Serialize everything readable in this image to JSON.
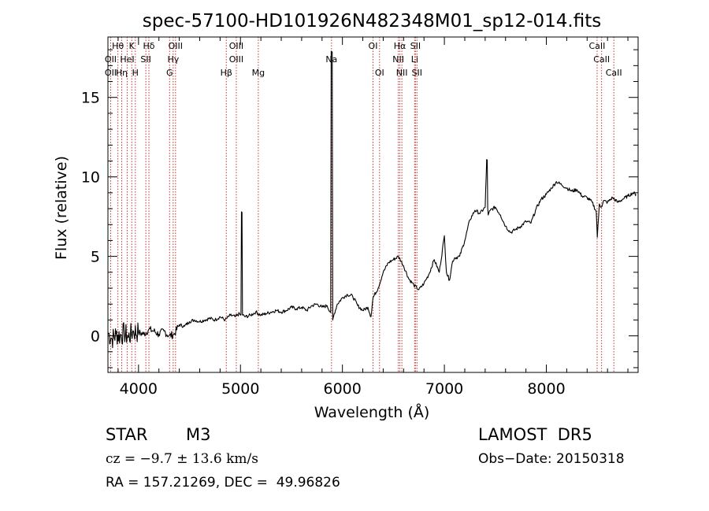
{
  "chart_data": {
    "type": "line",
    "title": "spec-57100-HD101926N482348M01_sp12-014.fits",
    "xlabel": "Wavelength (Å)",
    "ylabel": "Flux (relative)",
    "xlim": [
      3700,
      8900
    ],
    "ylim": [
      -2.3,
      18.8
    ],
    "x_ticks": [
      4000,
      5000,
      6000,
      7000,
      8000
    ],
    "y_ticks": [
      0,
      5,
      10,
      15
    ],
    "x_tick_labels": [
      "4000",
      "5000",
      "6000",
      "7000",
      "8000"
    ],
    "y_tick_labels": [
      "0",
      "5",
      "10",
      "15"
    ],
    "grid": false,
    "legend": "none",
    "series": [
      {
        "x": [
          3700,
          3740,
          3780,
          3820,
          3860,
          3900,
          3950,
          4000,
          4050,
          4100,
          4150,
          4200,
          4250,
          4300,
          4350,
          4400,
          4450,
          4500,
          4550,
          4600,
          4650,
          4700,
          4750,
          4800,
          4850,
          4900,
          4950,
          4990,
          5000,
          5010,
          5020,
          5050,
          5100,
          5150,
          5200,
          5250,
          5300,
          5350,
          5400,
          5450,
          5500,
          5550,
          5600,
          5650,
          5700,
          5750,
          5800,
          5850,
          5880,
          5895,
          5905,
          5920,
          5950,
          6000,
          6050,
          6100,
          6150,
          6200,
          6250,
          6280,
          6300,
          6350,
          6400,
          6450,
          6500,
          6550,
          6600,
          6650,
          6700,
          6750,
          6800,
          6850,
          6900,
          6950,
          7000,
          7020,
          7050,
          7080,
          7100,
          7150,
          7200,
          7250,
          7300,
          7350,
          7400,
          7415,
          7425,
          7430,
          7450,
          7500,
          7550,
          7600,
          7650,
          7700,
          7750,
          7800,
          7850,
          7900,
          7950,
          8000,
          8050,
          8100,
          8150,
          8200,
          8250,
          8300,
          8350,
          8400,
          8450,
          8490,
          8500,
          8520,
          8540,
          8560,
          8600,
          8650,
          8700,
          8750,
          8800,
          8850,
          8880
        ],
        "y": [
          0.2,
          -0.2,
          0.1,
          0.0,
          0.2,
          -0.1,
          0.3,
          0.2,
          0.1,
          0.4,
          0.3,
          0.1,
          0.3,
          0.0,
          0.1,
          0.7,
          0.6,
          0.9,
          1.0,
          0.9,
          1.0,
          1.1,
          1.0,
          1.2,
          1.0,
          1.3,
          1.2,
          1.4,
          1.3,
          7.8,
          1.3,
          1.2,
          1.3,
          1.5,
          1.3,
          1.4,
          1.5,
          1.6,
          1.5,
          1.6,
          1.8,
          1.7,
          1.8,
          1.6,
          1.9,
          2.0,
          1.8,
          1.9,
          1.5,
          17.8,
          1.0,
          1.4,
          2.0,
          2.4,
          2.6,
          2.5,
          1.9,
          1.6,
          1.8,
          1.2,
          2.4,
          3.0,
          4.0,
          4.6,
          4.8,
          5.0,
          4.4,
          3.6,
          3.2,
          2.9,
          3.3,
          3.9,
          4.8,
          4.0,
          6.3,
          4.0,
          3.5,
          4.7,
          4.9,
          5.0,
          6.0,
          7.3,
          7.9,
          7.7,
          8.1,
          11.1,
          8.0,
          7.6,
          7.9,
          8.1,
          7.6,
          6.9,
          6.5,
          6.7,
          6.9,
          7.2,
          7.1,
          8.0,
          8.6,
          8.9,
          9.3,
          9.7,
          9.5,
          9.3,
          9.1,
          9.2,
          8.8,
          8.7,
          8.4,
          7.8,
          6.2,
          8.3,
          8.1,
          8.5,
          8.4,
          8.7,
          8.4,
          8.6,
          8.8,
          9.0,
          8.9
        ]
      }
    ],
    "line_colors": {
      "markers": "#c8332d",
      "spectrum": "#000000"
    },
    "lines": [
      {
        "label": "Hθ",
        "wavelength": 3798,
        "row": 0
      },
      {
        "label": "OII",
        "wavelength": 3727,
        "row": 1
      },
      {
        "label": "OII",
        "wavelength": 3727,
        "row": 2
      },
      {
        "label": "Hη",
        "wavelength": 3835,
        "row": 2
      },
      {
        "label": "K",
        "wavelength": 3934,
        "row": 0
      },
      {
        "label": "HeI",
        "wavelength": 3889,
        "row": 1
      },
      {
        "label": "H",
        "wavelength": 3969,
        "row": 2
      },
      {
        "label": "Hδ",
        "wavelength": 4102,
        "row": 0
      },
      {
        "label": "SII",
        "wavelength": 4072,
        "row": 1
      },
      {
        "label": "OIII",
        "wavelength": 4363,
        "row": 0
      },
      {
        "label": "Hγ",
        "wavelength": 4340,
        "row": 1
      },
      {
        "label": "G",
        "wavelength": 4305,
        "row": 2
      },
      {
        "label": "OIII",
        "wavelength": 4959,
        "row": 0
      },
      {
        "label": "OIII",
        "wavelength": 4959,
        "row": 1
      },
      {
        "label": "Hβ",
        "wavelength": 4861,
        "row": 2
      },
      {
        "label": "Mg",
        "wavelength": 5175,
        "row": 2
      },
      {
        "label": "Na",
        "wavelength": 5893,
        "row": 1
      },
      {
        "label": "OI",
        "wavelength": 6300,
        "row": 0
      },
      {
        "label": "OI",
        "wavelength": 6364,
        "row": 2
      },
      {
        "label": "Hα",
        "wavelength": 6563,
        "row": 0
      },
      {
        "label": "NII",
        "wavelength": 6548,
        "row": 1
      },
      {
        "label": "NII",
        "wavelength": 6583,
        "row": 2
      },
      {
        "label": "SII",
        "wavelength": 6716,
        "row": 0
      },
      {
        "label": "Li",
        "wavelength": 6708,
        "row": 1
      },
      {
        "label": "SII",
        "wavelength": 6731,
        "row": 2
      },
      {
        "label": "CaII",
        "wavelength": 8498,
        "row": 0
      },
      {
        "label": "CaII",
        "wavelength": 8542,
        "row": 1
      },
      {
        "label": "CaII",
        "wavelength": 8662,
        "row": 2
      }
    ]
  },
  "info": {
    "object_class": "STAR",
    "subclass": "M3",
    "survey": "LAMOST  DR5",
    "cz": "cz = −9.7 ± 13.6 km/s",
    "obs_date": "Obs−Date: 20150318",
    "coords": "RA = 157.21269, DEC =  49.96826"
  }
}
